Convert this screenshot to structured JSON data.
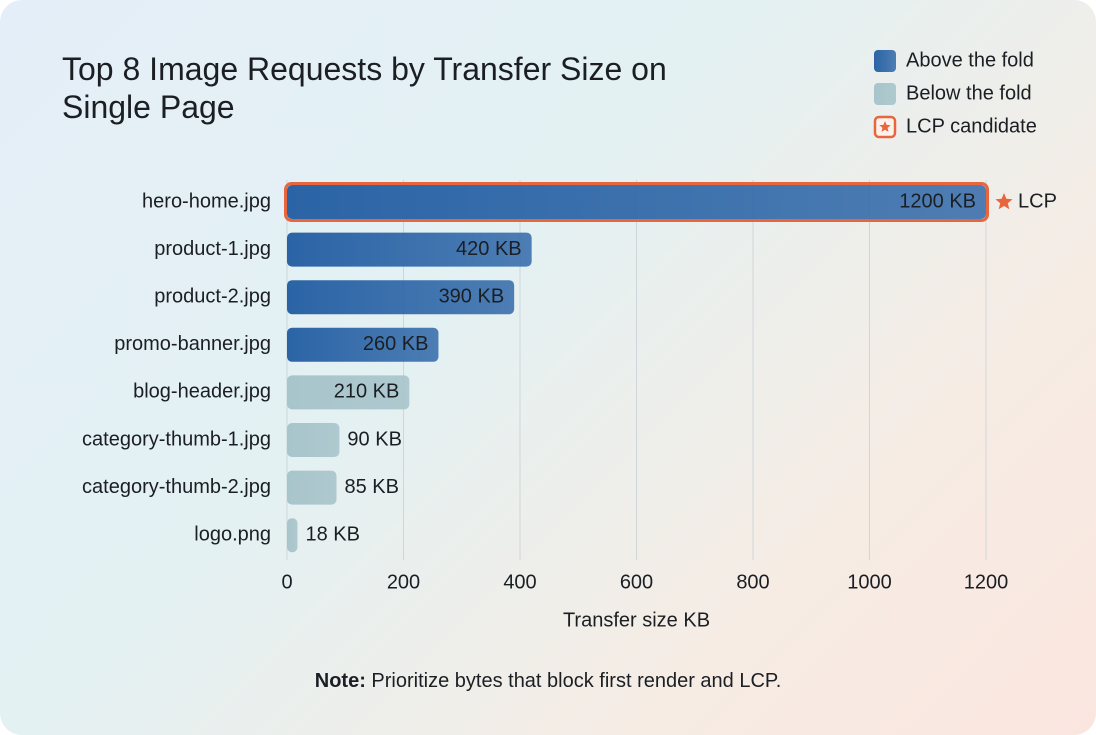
{
  "chart_data": {
    "type": "barh",
    "title": "Top 8 Image Requests by Transfer Size on Single Page",
    "xlabel": "Transfer size KB",
    "categories": [
      "hero-home.jpg",
      "product-1.jpg",
      "product-2.jpg",
      "promo-banner.jpg",
      "blog-header.jpg",
      "category-thumb-1.jpg",
      "category-thumb-2.jpg",
      "logo.png"
    ],
    "series": [
      {
        "name": "Above the fold",
        "color": "#2b64a6",
        "values": [
          1200,
          420,
          390,
          260,
          null,
          null,
          null,
          null
        ],
        "value_labels": [
          "1200 KB",
          "420 KB",
          "390 KB",
          "260 KB",
          null,
          null,
          null,
          null
        ]
      },
      {
        "name": "Below the fold",
        "color": "#a8c5cb",
        "values": [
          null,
          null,
          null,
          null,
          210,
          90,
          85,
          18
        ],
        "value_labels": [
          null,
          null,
          null,
          null,
          "210 KB",
          "90 KB",
          "85 KB",
          "18 KB"
        ]
      }
    ],
    "highlight": {
      "name": "LCP candidate",
      "label": "LCP",
      "color": "#e8663d",
      "category": "hero-home.jpg"
    },
    "xlim": [
      0,
      1200
    ],
    "xticks": [
      0,
      200,
      400,
      600,
      800,
      1000,
      1200
    ],
    "grid": true,
    "legend": "top-right",
    "note": {
      "label": "Note:",
      "text": "Prioritize bytes that block first render and LCP."
    }
  }
}
